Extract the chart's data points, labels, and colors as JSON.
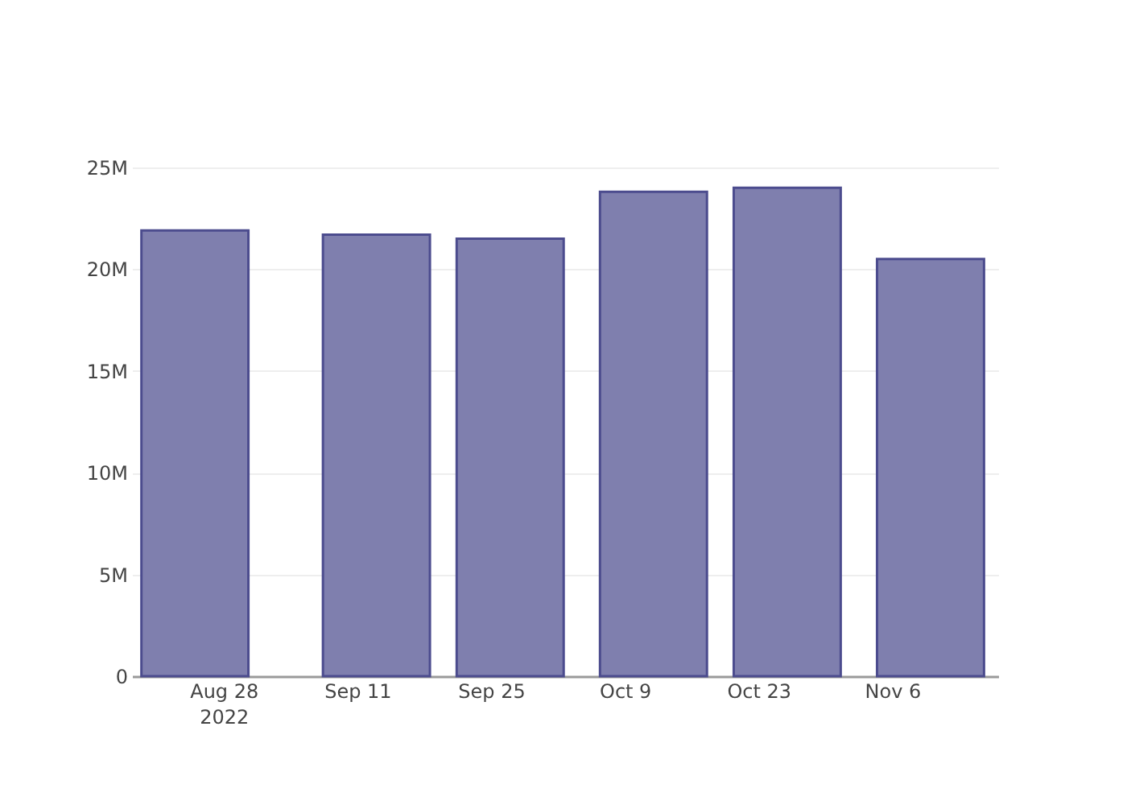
{
  "chart_data": {
    "type": "bar",
    "x": [
      "2022-08-25",
      "2022-09-13",
      "2022-09-27",
      "2022-10-12",
      "2022-10-26",
      "2022-11-10"
    ],
    "values": [
      21900000,
      21700000,
      21500000,
      23800000,
      24000000,
      20500000
    ],
    "color": "#7f7fae",
    "xlim": [
      "2022-08-18T10:00",
      "2022-11-17T02:00"
    ],
    "xticks": [
      {
        "value": "2022-08-28",
        "label": "Aug 28\n2022"
      },
      {
        "value": "2022-09-11",
        "label": "Sep 11"
      },
      {
        "value": "2022-09-25",
        "label": "Sep 25"
      },
      {
        "value": "2022-10-09",
        "label": "Oct 9"
      },
      {
        "value": "2022-10-23",
        "label": "Oct 23"
      },
      {
        "value": "2022-11-06",
        "label": "Nov 6"
      }
    ],
    "ylim": [
      0,
      25000000
    ],
    "yticks": [
      {
        "value": 0,
        "label": "0"
      },
      {
        "value": 5000000,
        "label": "5M"
      },
      {
        "value": 10000000,
        "label": "10M"
      },
      {
        "value": 15000000,
        "label": "15M"
      },
      {
        "value": 20000000,
        "label": "20M"
      },
      {
        "value": 25000000,
        "label": "25M"
      }
    ],
    "grid": "y"
  }
}
